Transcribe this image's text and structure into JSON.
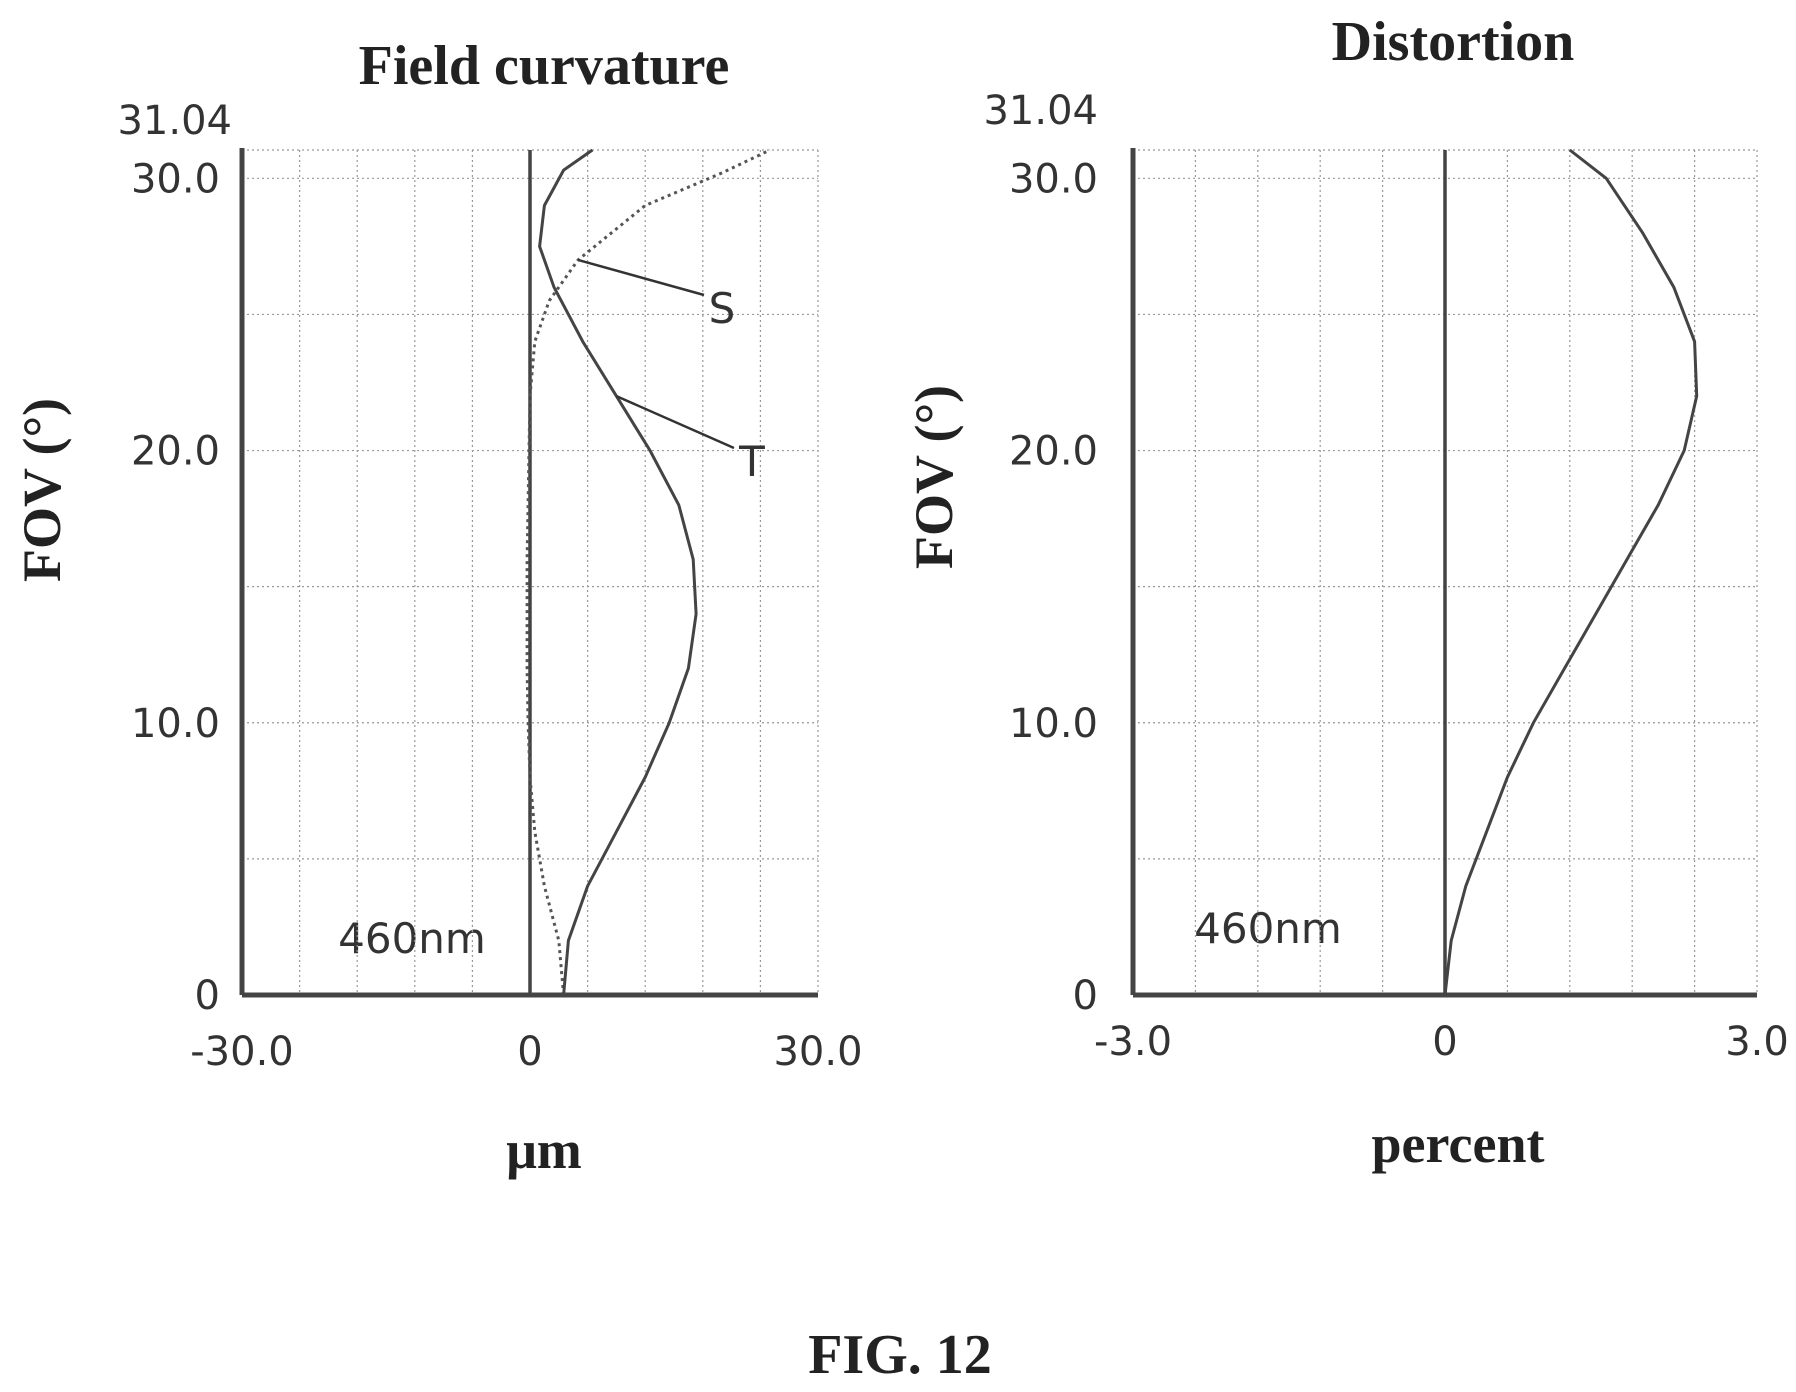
{
  "figure_caption": "FIG. 12",
  "chart_data": [
    {
      "type": "line",
      "title": "Field curvature",
      "xlabel": "μm",
      "ylabel": "FOV (°)",
      "xlim": [
        -30.0,
        30.0
      ],
      "ylim": [
        0,
        31.04
      ],
      "x_ticks": [
        "-30.0",
        "0",
        "30.0"
      ],
      "y_ticks": [
        "0",
        "10.0",
        "20.0",
        "30.0"
      ],
      "y_max_label": "31.04",
      "annotation": "460nm",
      "grid": true,
      "series": [
        {
          "name": "S",
          "style": "dotted",
          "points": [
            [
              3.5,
              0
            ],
            [
              3,
              2
            ],
            [
              1.5,
              4
            ],
            [
              0.5,
              6
            ],
            [
              0,
              8
            ],
            [
              -0.2,
              10
            ],
            [
              -0.3,
              12
            ],
            [
              -0.3,
              14
            ],
            [
              -0.3,
              16
            ],
            [
              -0.2,
              18
            ],
            [
              -0.1,
              20
            ],
            [
              0,
              22
            ],
            [
              0.5,
              24
            ],
            [
              2,
              25.5
            ],
            [
              5,
              27
            ],
            [
              12,
              29
            ],
            [
              20,
              30.2
            ],
            [
              25,
              31.04
            ]
          ]
        },
        {
          "name": "T",
          "style": "solid",
          "points": [
            [
              3.5,
              0
            ],
            [
              4,
              2
            ],
            [
              6,
              4
            ],
            [
              9,
              6
            ],
            [
              12,
              8
            ],
            [
              14.5,
              10
            ],
            [
              16.5,
              12
            ],
            [
              17.3,
              14
            ],
            [
              17,
              16
            ],
            [
              15.5,
              18
            ],
            [
              12.5,
              20
            ],
            [
              9,
              22
            ],
            [
              5.5,
              24
            ],
            [
              2.5,
              26
            ],
            [
              1,
              27.5
            ],
            [
              1.5,
              29
            ],
            [
              3.5,
              30.3
            ],
            [
              6.5,
              31.04
            ]
          ]
        }
      ],
      "labels": [
        {
          "text": "S",
          "series": "S"
        },
        {
          "text": "T",
          "series": "T"
        }
      ]
    },
    {
      "type": "line",
      "title": "Distortion",
      "xlabel": "percent",
      "ylabel": "FOV (°)",
      "xlim": [
        -3.0,
        3.0
      ],
      "ylim": [
        0,
        31.04
      ],
      "x_ticks": [
        "-3.0",
        "0",
        "3.0"
      ],
      "y_ticks": [
        "0",
        "10.0",
        "20.0",
        "30.0"
      ],
      "y_max_label": "31.04",
      "annotation": "460nm",
      "grid": true,
      "series": [
        {
          "style": "solid",
          "points": [
            [
              0,
              0
            ],
            [
              0.06,
              2
            ],
            [
              0.2,
              4
            ],
            [
              0.4,
              6
            ],
            [
              0.6,
              8
            ],
            [
              0.85,
              10
            ],
            [
              1.15,
              12
            ],
            [
              1.45,
              14
            ],
            [
              1.75,
              16
            ],
            [
              2.05,
              18
            ],
            [
              2.3,
              20
            ],
            [
              2.42,
              22
            ],
            [
              2.4,
              24
            ],
            [
              2.2,
              26
            ],
            [
              1.9,
              28
            ],
            [
              1.55,
              30
            ],
            [
              1.2,
              31.04
            ]
          ]
        }
      ]
    }
  ]
}
